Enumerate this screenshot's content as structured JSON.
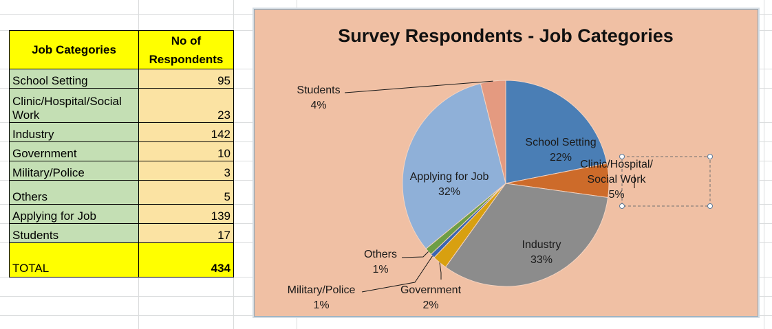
{
  "table": {
    "headers": {
      "category": "Job Categories",
      "count_line1": "No of",
      "count_line2": "Respondents"
    },
    "rows": [
      {
        "category": "School Setting",
        "count": "95"
      },
      {
        "category_line1": "Clinic/Hospital/Social",
        "category_line2": "Work",
        "count": "23"
      },
      {
        "category": "Industry",
        "count": "142"
      },
      {
        "category": "Government",
        "count": "10"
      },
      {
        "category": "Military/Police",
        "count": "3"
      },
      {
        "category": "Others",
        "count": "5"
      },
      {
        "category": "Applying for Job",
        "count": "139"
      },
      {
        "category": "Students",
        "count": "17"
      }
    ],
    "total": {
      "label": "TOTAL",
      "count": "434"
    }
  },
  "chart_data": {
    "type": "pie",
    "title": "Survey Respondents - Job Categories",
    "categories": [
      "School Setting",
      "Clinic/Hospital/Social Work",
      "Industry",
      "Government",
      "Military/Police",
      "Others",
      "Applying for Job",
      "Students"
    ],
    "values": [
      95,
      23,
      142,
      10,
      3,
      5,
      139,
      17
    ],
    "percent_labels": [
      "22%",
      "5%",
      "33%",
      "2%",
      "1%",
      "1%",
      "32%",
      "4%"
    ],
    "slice_labels": [
      [
        "School Setting",
        "22%"
      ],
      [
        "Clinic/Hospital/",
        "Social Work",
        "5%"
      ],
      [
        "Industry",
        "33%"
      ],
      [
        "Government",
        "2%"
      ],
      [
        "Military/Police",
        "1%"
      ],
      [
        "Others",
        "1%"
      ],
      [
        "Applying for Job",
        "32%"
      ],
      [
        "Students",
        "4%"
      ]
    ],
    "colors": [
      "#4a7eb5",
      "#cd6b2a",
      "#8c8c8c",
      "#d8a010",
      "#3a66b0",
      "#6e9e45",
      "#8fb0d8",
      "#e49a80"
    ],
    "legend": "none",
    "start_angle": "12 o'clock, clockwise"
  },
  "colors": {
    "chart_background": "#f0c0a4",
    "header_fill": "#ffff00",
    "category_fill": "#c4dfb4",
    "count_fill": "#fbe3a3"
  }
}
